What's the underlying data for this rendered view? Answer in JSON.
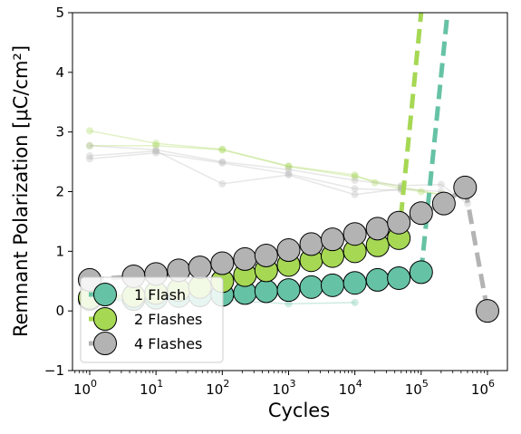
{
  "chart_data": {
    "type": "scatter",
    "xlabel": "Cycles",
    "ylabel": "Remnant Polarization [μC/cm²]",
    "xscale": "log",
    "xlim": [
      0.55,
      2000000
    ],
    "ylim": [
      -1,
      5
    ],
    "x_ticks": [
      {
        "value": 1,
        "exp": "0"
      },
      {
        "value": 10,
        "exp": "1"
      },
      {
        "value": 100,
        "exp": "2"
      },
      {
        "value": 1000,
        "exp": "3"
      },
      {
        "value": 10000,
        "exp": "4"
      },
      {
        "value": 100000,
        "exp": "5"
      },
      {
        "value": 1000000,
        "exp": "6"
      }
    ],
    "x_tick_base": "10",
    "y_ticks": [
      "−1",
      "0",
      "1",
      "2",
      "3",
      "4",
      "5"
    ],
    "grid": false,
    "legend_position": "lower-left",
    "faint_series": [
      {
        "color": "#a6d854",
        "x": [
          1,
          10,
          100,
          1000,
          10000,
          20000,
          50000,
          100000,
          200000
        ],
        "y": [
          3.02,
          2.81,
          2.71,
          2.43,
          2.28,
          2.15,
          2.05,
          2.0,
          1.95
        ]
      },
      {
        "color": "#a6d854",
        "x": [
          1,
          10,
          100,
          1000,
          10000,
          50000,
          200000
        ],
        "y": [
          2.77,
          2.77,
          2.7,
          2.42,
          2.25,
          2.08,
          1.95
        ]
      },
      {
        "color": "#b3b3b3",
        "x": [
          1,
          10,
          100,
          1000,
          10000,
          50000,
          200000,
          500000
        ],
        "y": [
          2.77,
          2.7,
          2.5,
          2.37,
          2.19,
          2.1,
          2.12,
          1.8
        ]
      },
      {
        "color": "#b3b3b3",
        "x": [
          1,
          10,
          100,
          1000,
          10000,
          50000,
          200000
        ],
        "y": [
          2.6,
          2.68,
          2.13,
          2.28,
          1.95,
          2.05,
          2.0
        ]
      },
      {
        "color": "#b3b3b3",
        "x": [
          1,
          10,
          100,
          1000,
          10000,
          50000
        ],
        "y": [
          2.55,
          2.65,
          2.48,
          2.3,
          2.05,
          2.02
        ]
      },
      {
        "color": "#66c2a5",
        "x": [
          1,
          10,
          100,
          1000,
          10000
        ],
        "y": [
          0.35,
          0.45,
          0.18,
          0.12,
          0.14
        ]
      }
    ],
    "series": [
      {
        "name": "1 Flash",
        "color": "#66c2a5",
        "x": [
          1,
          4.6,
          10,
          22,
          46,
          100,
          220,
          460,
          1000,
          2200,
          4600,
          10000,
          22000,
          46000,
          100000
        ],
        "y": [
          0.2,
          0.2,
          0.22,
          0.25,
          0.26,
          0.27,
          0.3,
          0.33,
          0.35,
          0.4,
          0.43,
          0.47,
          0.52,
          0.55,
          0.65
        ],
        "tail_x": [
          100000,
          250000
        ],
        "tail_y": [
          0.65,
          5.0
        ]
      },
      {
        "name": "2 Flashes",
        "color": "#a6d854",
        "x": [
          1,
          4.6,
          10,
          22,
          46,
          100,
          220,
          460,
          1000,
          2200,
          4600,
          10000,
          22000,
          46000
        ],
        "y": [
          0.22,
          0.25,
          0.3,
          0.35,
          0.4,
          0.5,
          0.6,
          0.68,
          0.77,
          0.85,
          0.92,
          1.0,
          1.1,
          1.22
        ],
        "tail_x": [
          46000,
          100000
        ],
        "tail_y": [
          1.22,
          5.0
        ]
      },
      {
        "name": "4 Flashes",
        "color": "#b3b3b3",
        "x": [
          1,
          4.6,
          10,
          22,
          46,
          100,
          220,
          460,
          1000,
          2200,
          4600,
          10000,
          22000,
          46000,
          100000,
          220000,
          460000,
          1000000
        ],
        "y": [
          0.52,
          0.58,
          0.62,
          0.68,
          0.73,
          0.8,
          0.87,
          0.93,
          1.02,
          1.12,
          1.2,
          1.29,
          1.38,
          1.48,
          1.64,
          1.8,
          2.07,
          0.0
        ]
      }
    ]
  }
}
